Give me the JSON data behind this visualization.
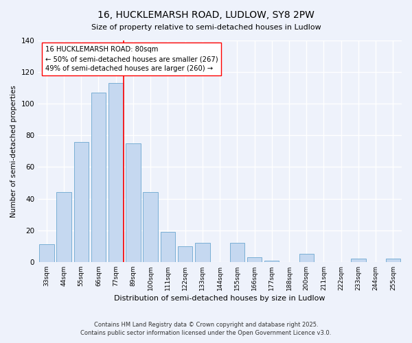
{
  "title": "16, HUCKLEMARSH ROAD, LUDLOW, SY8 2PW",
  "subtitle": "Size of property relative to semi-detached houses in Ludlow",
  "xlabel": "Distribution of semi-detached houses by size in Ludlow",
  "ylabel": "Number of semi-detached properties",
  "categories": [
    "33sqm",
    "44sqm",
    "55sqm",
    "66sqm",
    "77sqm",
    "89sqm",
    "100sqm",
    "111sqm",
    "122sqm",
    "133sqm",
    "144sqm",
    "155sqm",
    "166sqm",
    "177sqm",
    "188sqm",
    "200sqm",
    "211sqm",
    "222sqm",
    "233sqm",
    "244sqm",
    "255sqm"
  ],
  "values": [
    11,
    44,
    76,
    107,
    113,
    75,
    44,
    19,
    10,
    12,
    0,
    12,
    3,
    1,
    0,
    5,
    0,
    0,
    2,
    0,
    2
  ],
  "bar_color": "#c5d8f0",
  "bar_edge_color": "#7aafd4",
  "annotation_text": "16 HUCKLEMARSH ROAD: 80sqm\n← 50% of semi-detached houses are smaller (267)\n49% of semi-detached houses are larger (260) →",
  "ylim": [
    0,
    140
  ],
  "yticks": [
    0,
    20,
    40,
    60,
    80,
    100,
    120,
    140
  ],
  "background_color": "#eef2fb",
  "grid_color": "#ffffff",
  "red_line_x": 4.43,
  "footer_line1": "Contains HM Land Registry data © Crown copyright and database right 2025.",
  "footer_line2": "Contains public sector information licensed under the Open Government Licence v3.0."
}
